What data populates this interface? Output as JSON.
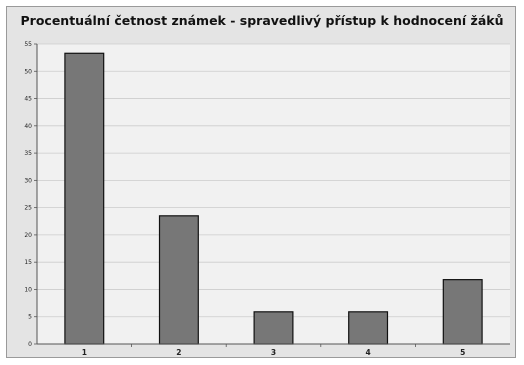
{
  "chart_data": {
    "type": "bar",
    "title": "Procentuální četnost známek - spravedlivý přístup k hodnocení žáků",
    "xlabel": "",
    "ylabel": "",
    "categories": [
      "1",
      "2",
      "3",
      "4",
      "5"
    ],
    "values": [
      53.3,
      23.5,
      5.9,
      5.9,
      11.8
    ],
    "ylim": [
      0,
      55
    ],
    "yticks": [
      0,
      5,
      10,
      15,
      20,
      25,
      30,
      35,
      40,
      45,
      50,
      55
    ],
    "grid": true,
    "legend": "none",
    "colors": {
      "bar_fill": "#777777",
      "bar_stroke": "#111111",
      "plot_background": "#f1f1f1",
      "frame_background": "#e4e4e4",
      "grid": "#cccccc"
    }
  }
}
